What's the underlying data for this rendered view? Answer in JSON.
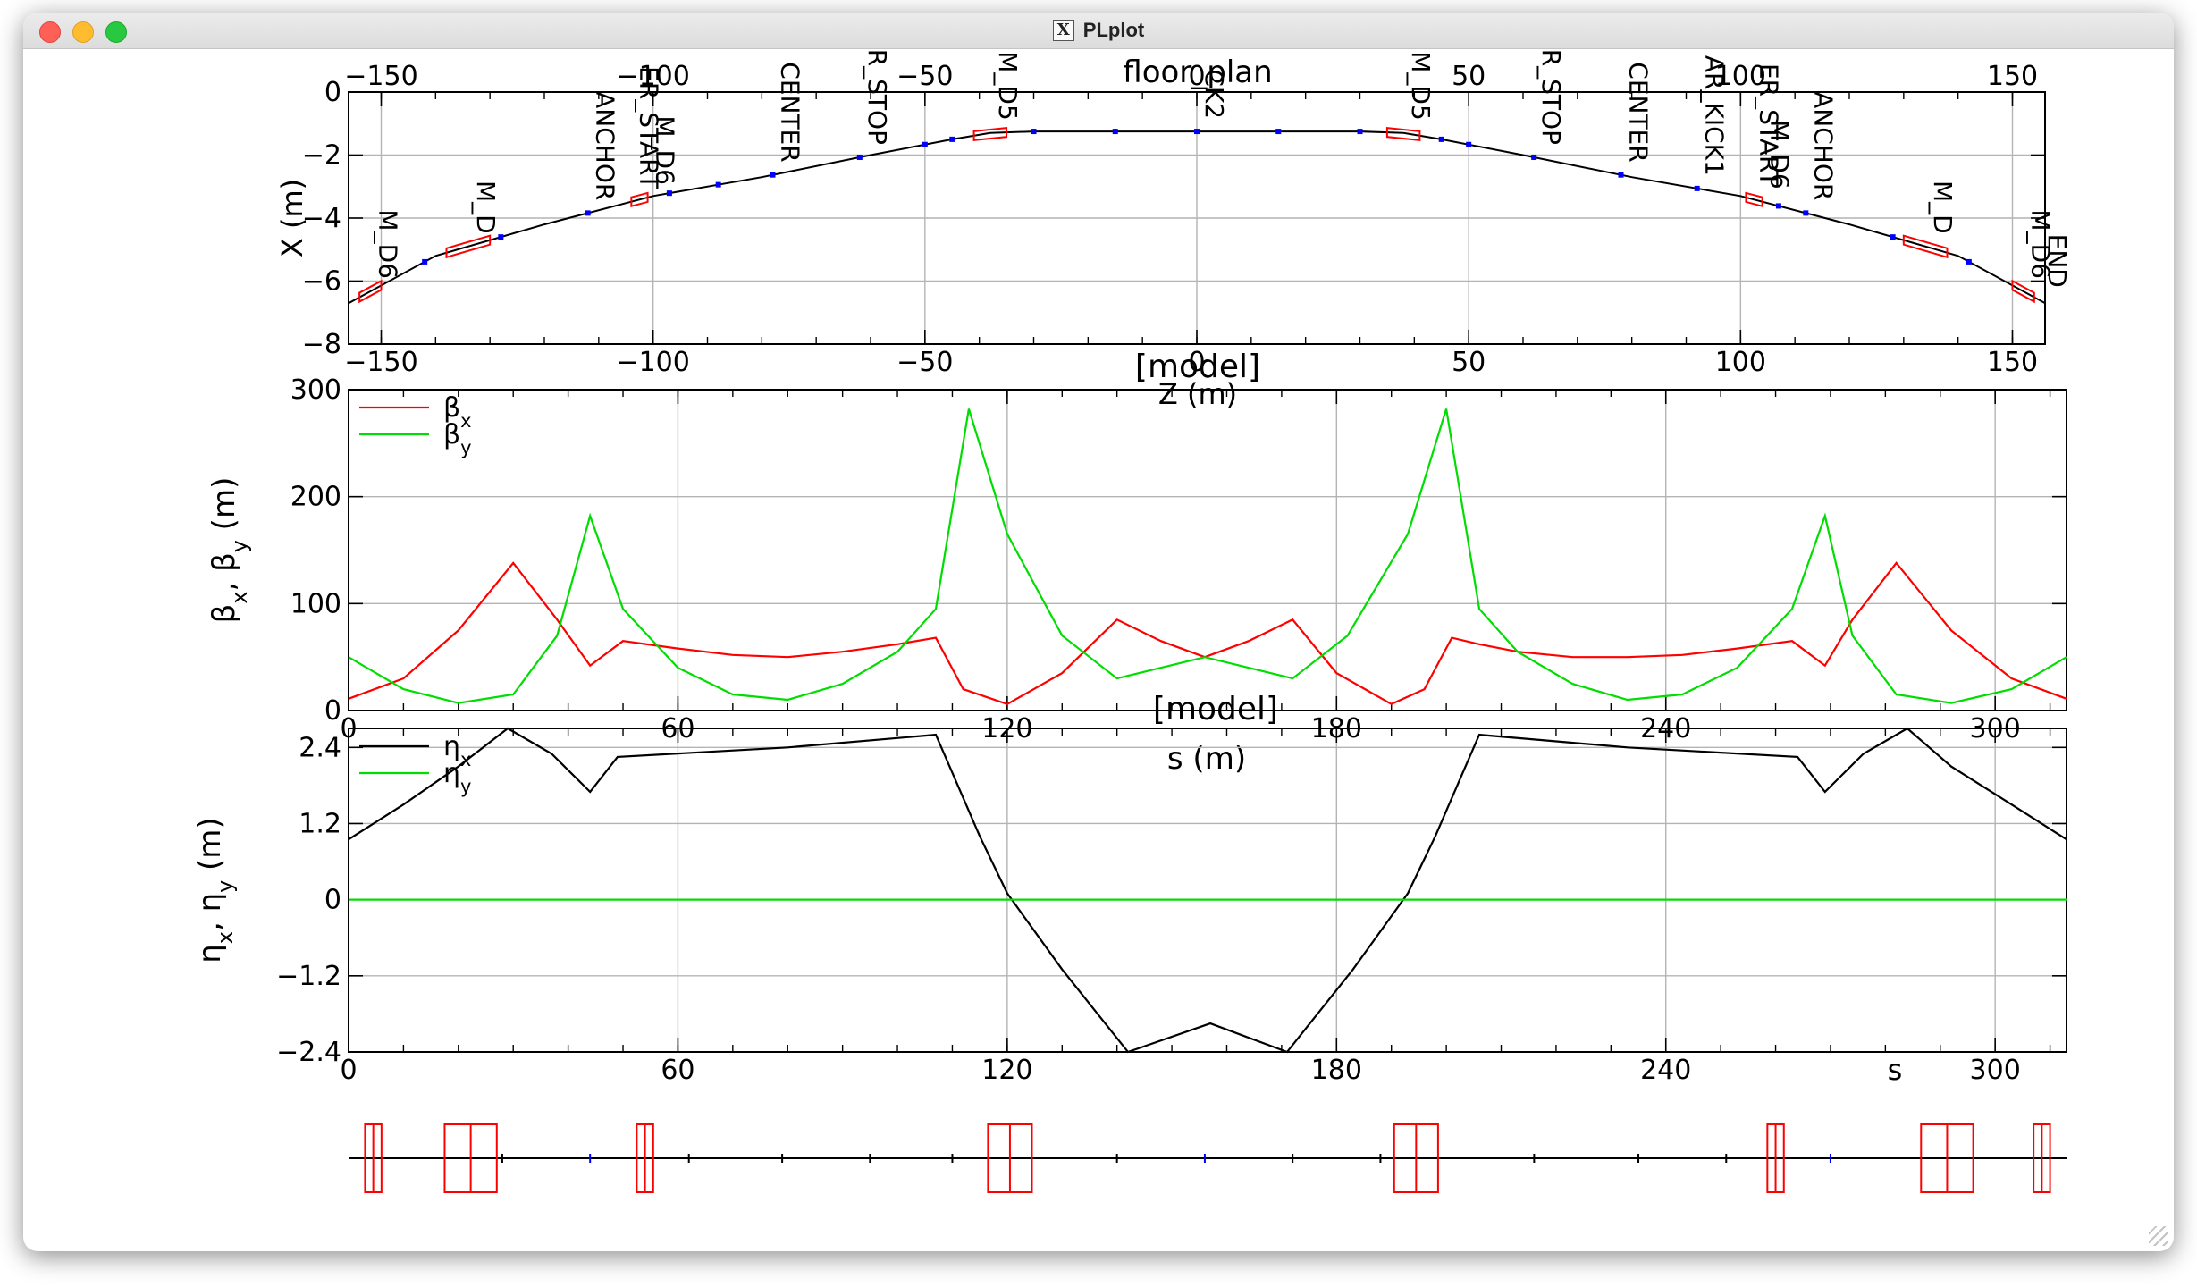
{
  "window": {
    "title": "PLplot",
    "app_icon": "x11-icon"
  },
  "colors": {
    "red": "#ff0000",
    "green": "#00dd00",
    "black": "#000000",
    "blue": "#0000ff",
    "grid": "#b4b4b4"
  },
  "chart_data": [
    {
      "id": "floorplan",
      "type": "line",
      "title": "floor_plan",
      "xlabel": "Z (m)",
      "ylabel": "X (m)",
      "model_label": "[model]",
      "xlim": [
        -156,
        156
      ],
      "ylim": [
        -8,
        0
      ],
      "xticks": [
        -150,
        -100,
        -50,
        0,
        50,
        100,
        150
      ],
      "yticks": [
        0,
        -2,
        -4,
        -6,
        -8
      ],
      "grid": true,
      "curve": {
        "z": [
          -156,
          -140,
          -120,
          -100,
          -80,
          -60,
          -45,
          -38,
          -30,
          0,
          30,
          38,
          45,
          60,
          80,
          100,
          120,
          140,
          156
        ],
        "x": [
          -6.7,
          -5.2,
          -4.2,
          -3.3,
          -2.7,
          -2.0,
          -1.5,
          -1.3,
          -1.25,
          -1.25,
          -1.25,
          -1.3,
          -1.5,
          -2.0,
          -2.7,
          -3.3,
          -4.2,
          -5.2,
          -6.7
        ]
      },
      "element_labels": [
        {
          "z": -152,
          "text": "M_D6"
        },
        {
          "z": -134,
          "text": "M_D"
        },
        {
          "z": -112,
          "text": "ANCHOR"
        },
        {
          "z": -104,
          "text": "ER_START"
        },
        {
          "z": -101,
          "text": "M_D6"
        },
        {
          "z": -78,
          "text": "CENTER"
        },
        {
          "z": -62,
          "text": "R_STOP"
        },
        {
          "z": -38,
          "text": "M_D5"
        },
        {
          "z": 0,
          "text": "CK2"
        },
        {
          "z": 38,
          "text": "M_D5"
        },
        {
          "z": 62,
          "text": "R_STOP"
        },
        {
          "z": 78,
          "text": "CENTER"
        },
        {
          "z": 92,
          "text": "AR_KICK1"
        },
        {
          "z": 102,
          "text": "ER_START"
        },
        {
          "z": 104,
          "text": "M_D6"
        },
        {
          "z": 112,
          "text": "ANCHOR"
        },
        {
          "z": 134,
          "text": "M_D"
        },
        {
          "z": 152,
          "text": "M_D6"
        },
        {
          "z": 155,
          "text": "END"
        }
      ]
    },
    {
      "id": "beta",
      "type": "line",
      "xlabel": "s (m)",
      "ylabel": "βx, βy (m)",
      "model_label": "[model]",
      "xlim": [
        0,
        313
      ],
      "ylim": [
        0,
        300
      ],
      "xticks": [
        0,
        60,
        120,
        180,
        240,
        300
      ],
      "yticks": [
        0,
        100,
        200,
        300
      ],
      "grid": true,
      "legend": "top-left",
      "series": [
        {
          "name": "βx",
          "color": "#ff0000",
          "s": [
            0,
            10,
            20,
            30,
            38,
            44,
            50,
            60,
            70,
            80,
            90,
            100,
            107,
            112,
            120,
            130,
            140,
            148,
            156,
            164,
            172,
            180,
            190,
            196,
            201,
            206,
            213,
            223,
            233,
            243,
            253,
            263,
            269,
            274,
            282,
            292,
            303,
            313
          ],
          "values": [
            11,
            30,
            75,
            138,
            85,
            42,
            65,
            58,
            52,
            50,
            55,
            62,
            68,
            20,
            6,
            35,
            85,
            65,
            50,
            65,
            85,
            35,
            6,
            20,
            68,
            62,
            55,
            50,
            50,
            52,
            58,
            65,
            42,
            85,
            138,
            75,
            30,
            11
          ]
        },
        {
          "name": "βy",
          "color": "#00dd00",
          "s": [
            0,
            10,
            20,
            30,
            38,
            44,
            50,
            60,
            70,
            80,
            90,
            100,
            107,
            113,
            120,
            130,
            140,
            156,
            172,
            182,
            193,
            200,
            206,
            213,
            223,
            233,
            243,
            253,
            263,
            269,
            274,
            282,
            292,
            303,
            313
          ],
          "values": [
            50,
            20,
            7,
            15,
            70,
            182,
            95,
            40,
            15,
            10,
            25,
            55,
            95,
            282,
            165,
            70,
            30,
            50,
            30,
            70,
            165,
            282,
            95,
            55,
            25,
            10,
            15,
            40,
            95,
            182,
            70,
            15,
            7,
            20,
            50
          ]
        }
      ]
    },
    {
      "id": "eta",
      "type": "line",
      "xlabel": "s",
      "ylabel": "ηx, ηy (m)",
      "xlim": [
        0,
        313
      ],
      "ylim": [
        -2.4,
        2.7
      ],
      "xticks": [
        0,
        60,
        120,
        180,
        240,
        300
      ],
      "yticks": [
        2.4,
        1.2,
        0,
        -1.2,
        -2.4
      ],
      "grid": true,
      "legend": "top-left",
      "series": [
        {
          "name": "ηx",
          "color": "#000000",
          "s": [
            0,
            10,
            20,
            29,
            37,
            44,
            49,
            80,
            107,
            110,
            115,
            120,
            130,
            142,
            157,
            171,
            183,
            193,
            198,
            203,
            206,
            233,
            264,
            269,
            276,
            284,
            292,
            303,
            313
          ],
          "values": [
            0.95,
            1.5,
            2.1,
            2.7,
            2.3,
            1.7,
            2.25,
            2.4,
            2.6,
            2.0,
            1.0,
            0.1,
            -1.1,
            -2.4,
            -1.95,
            -2.4,
            -1.1,
            0.1,
            1.0,
            2.0,
            2.6,
            2.4,
            2.25,
            1.7,
            2.3,
            2.7,
            2.1,
            1.5,
            0.95
          ]
        },
        {
          "name": "ηy",
          "color": "#00dd00",
          "s": [
            0,
            313
          ],
          "values": [
            0,
            0
          ]
        }
      ]
    }
  ],
  "lattice_layout": {
    "xlim": [
      0,
      313
    ],
    "boxes": [
      {
        "s": 3,
        "w": 3
      },
      {
        "s": 17.5,
        "w": 9.5
      },
      {
        "s": 52.5,
        "w": 3
      },
      {
        "s": 116.5,
        "w": 8
      },
      {
        "s": 190.5,
        "w": 8
      },
      {
        "s": 258.5,
        "w": 3
      },
      {
        "s": 286.5,
        "w": 9.5
      },
      {
        "s": 307,
        "w": 3
      }
    ],
    "ticks": [
      28,
      44,
      62,
      79,
      95,
      110,
      140,
      156,
      172,
      188,
      216,
      235,
      251,
      270
    ]
  }
}
